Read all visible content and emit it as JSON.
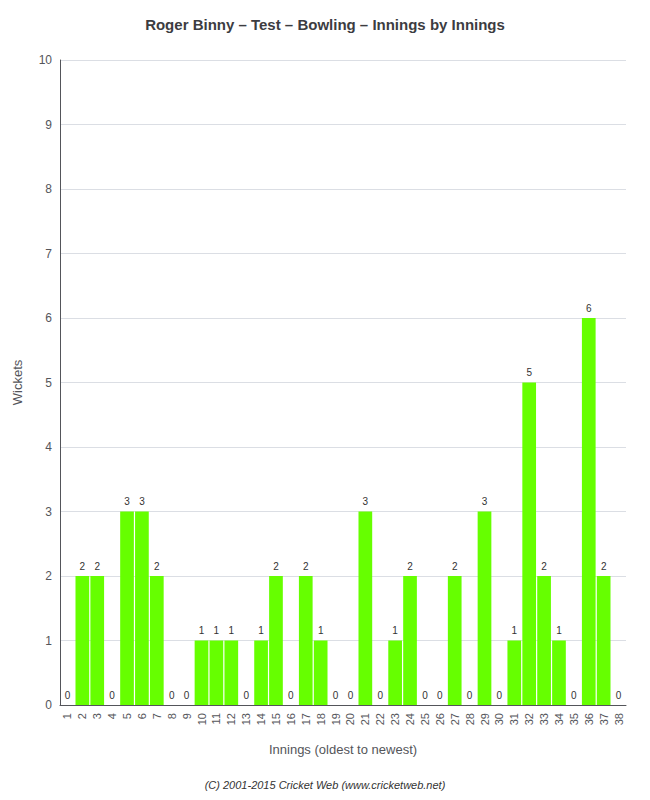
{
  "chart_data": {
    "type": "bar",
    "title": "Roger Binny – Test – Bowling – Innings by Innings",
    "xlabel": "Innings (oldest to newest)",
    "ylabel": "Wickets",
    "footnote": "(C) 2001-2015 Cricket Web (www.cricketweb.net)",
    "categories": [
      "1",
      "2",
      "3",
      "4",
      "5",
      "6",
      "7",
      "8",
      "9",
      "10",
      "11",
      "12",
      "13",
      "14",
      "15",
      "16",
      "17",
      "18",
      "19",
      "20",
      "21",
      "22",
      "23",
      "24",
      "25",
      "26",
      "27",
      "28",
      "29",
      "30",
      "31",
      "32",
      "33",
      "34",
      "35",
      "36",
      "37",
      "38"
    ],
    "values": [
      0,
      2,
      2,
      0,
      3,
      3,
      2,
      0,
      0,
      1,
      1,
      1,
      0,
      1,
      2,
      0,
      2,
      1,
      0,
      0,
      3,
      0,
      1,
      2,
      0,
      0,
      2,
      0,
      3,
      0,
      1,
      5,
      2,
      1,
      0,
      6,
      2,
      0
    ],
    "color": "#66ff00",
    "ylim": [
      0,
      10
    ],
    "yticks": [
      0,
      1,
      2,
      3,
      4,
      5,
      6,
      7,
      8,
      9,
      10
    ],
    "grid": true,
    "data_labels": true
  }
}
